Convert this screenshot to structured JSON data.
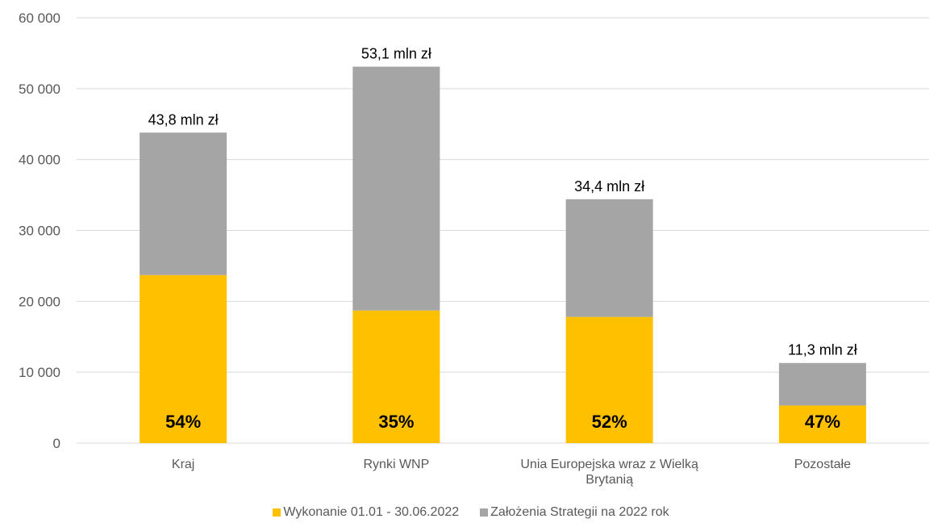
{
  "chart_data": {
    "type": "bar",
    "stacked": true,
    "categories": [
      "Kraj",
      "Rynki WNP",
      "Unia Europejska wraz z Wielką Brytanią",
      "Pozostałe"
    ],
    "category_lines": [
      [
        "Kraj"
      ],
      [
        "Rynki WNP"
      ],
      [
        "Unia Europejska wraz z Wielką",
        "Brytanią"
      ],
      [
        "Pozostałe"
      ]
    ],
    "series": [
      {
        "name": "Wykonanie 01.01 - 30.06.2022",
        "color": "#FFC000",
        "values": [
          23700,
          18700,
          17800,
          5300
        ]
      },
      {
        "name": "Założenia Strategii na 2022 rok",
        "color": "#A5A5A5",
        "values": [
          20100,
          34400,
          16600,
          6000
        ]
      }
    ],
    "totals": [
      43800,
      53100,
      34400,
      11300
    ],
    "total_labels": [
      "43,8 mln zł",
      "53,1 mln zł",
      "34,4 mln zł",
      "11,3 mln zł"
    ],
    "percent_labels": [
      "54%",
      "35%",
      "52%",
      "47%"
    ],
    "ylim": [
      0,
      60000
    ],
    "yticks": [
      0,
      10000,
      20000,
      30000,
      40000,
      50000,
      60000
    ],
    "ytick_labels": [
      "0",
      "10 000",
      "20 000",
      "30 000",
      "40 000",
      "50 000",
      "60 000"
    ],
    "grid": true,
    "gridline_color": "#D9D9D9",
    "legend_position": "bottom"
  }
}
